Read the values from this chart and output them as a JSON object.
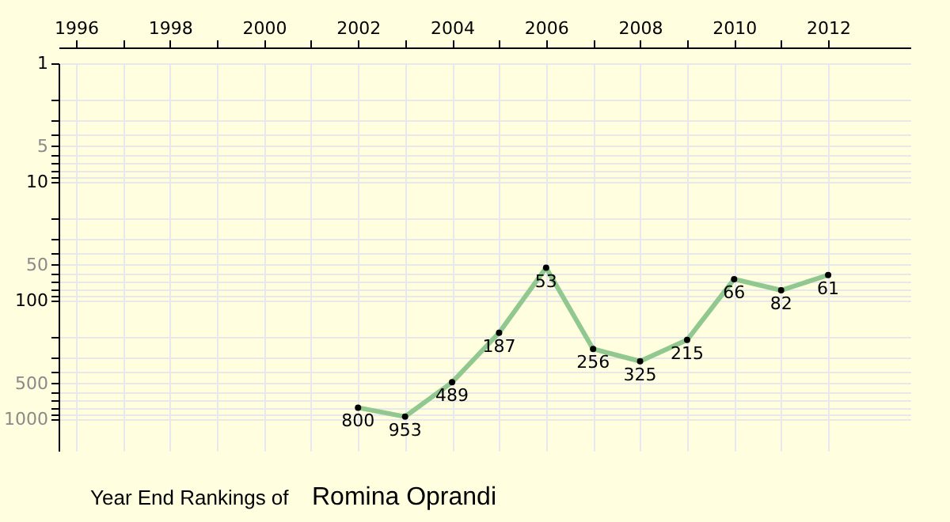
{
  "chart_data": {
    "type": "line",
    "title": "Year End Rankings of",
    "subtitle": "Romina Oprandi",
    "x": [
      2002,
      2003,
      2004,
      2005,
      2006,
      2007,
      2008,
      2009,
      2010,
      2011,
      2012
    ],
    "series": [
      {
        "color": "#90c890",
        "values": [
          800,
          953,
          489,
          187,
          53,
          256,
          325,
          215,
          66,
          82,
          61
        ]
      }
    ],
    "xlim": [
      1995.63,
      2013.75
    ],
    "xticks": [
      1996,
      {
        "value": 1997,
        "label": null
      },
      1998,
      {
        "value": 1999,
        "label": null
      },
      2000,
      {
        "value": 2001,
        "label": null
      },
      2002,
      {
        "value": 2003,
        "label": null
      },
      2004,
      {
        "value": 2005,
        "label": null
      },
      2006,
      {
        "value": 2007,
        "label": null
      },
      2008,
      {
        "value": 2009,
        "label": null
      },
      2010,
      {
        "value": 2011,
        "label": null
      },
      2012
    ],
    "ylim": [
      1850,
      1
    ],
    "yticks": [
      1,
      {
        "value": 2,
        "label": null
      },
      {
        "value": 3,
        "label": null
      },
      {
        "value": 4,
        "label": null
      },
      5,
      {
        "value": 6,
        "label": null
      },
      {
        "value": 7,
        "label": null
      },
      {
        "value": 8,
        "label": null
      },
      {
        "value": 9,
        "label": null
      },
      10,
      {
        "value": 20,
        "label": null
      },
      {
        "value": 30,
        "label": null
      },
      {
        "value": 40,
        "label": null
      },
      50,
      {
        "value": 60,
        "label": null
      },
      {
        "value": 70,
        "label": null
      },
      {
        "value": 80,
        "label": null
      },
      {
        "value": 90,
        "label": null
      },
      100,
      {
        "value": 200,
        "label": null
      },
      {
        "value": 300,
        "label": null
      },
      {
        "value": 400,
        "label": null
      },
      500,
      {
        "value": 600,
        "label": null
      },
      {
        "value": 700,
        "label": null
      },
      {
        "value": 800,
        "label": null
      },
      {
        "value": 900,
        "label": null
      },
      1000
    ],
    "log": "y",
    "grid": true,
    "marker": "circle",
    "line_style": "solid",
    "data_labels": true
  }
}
